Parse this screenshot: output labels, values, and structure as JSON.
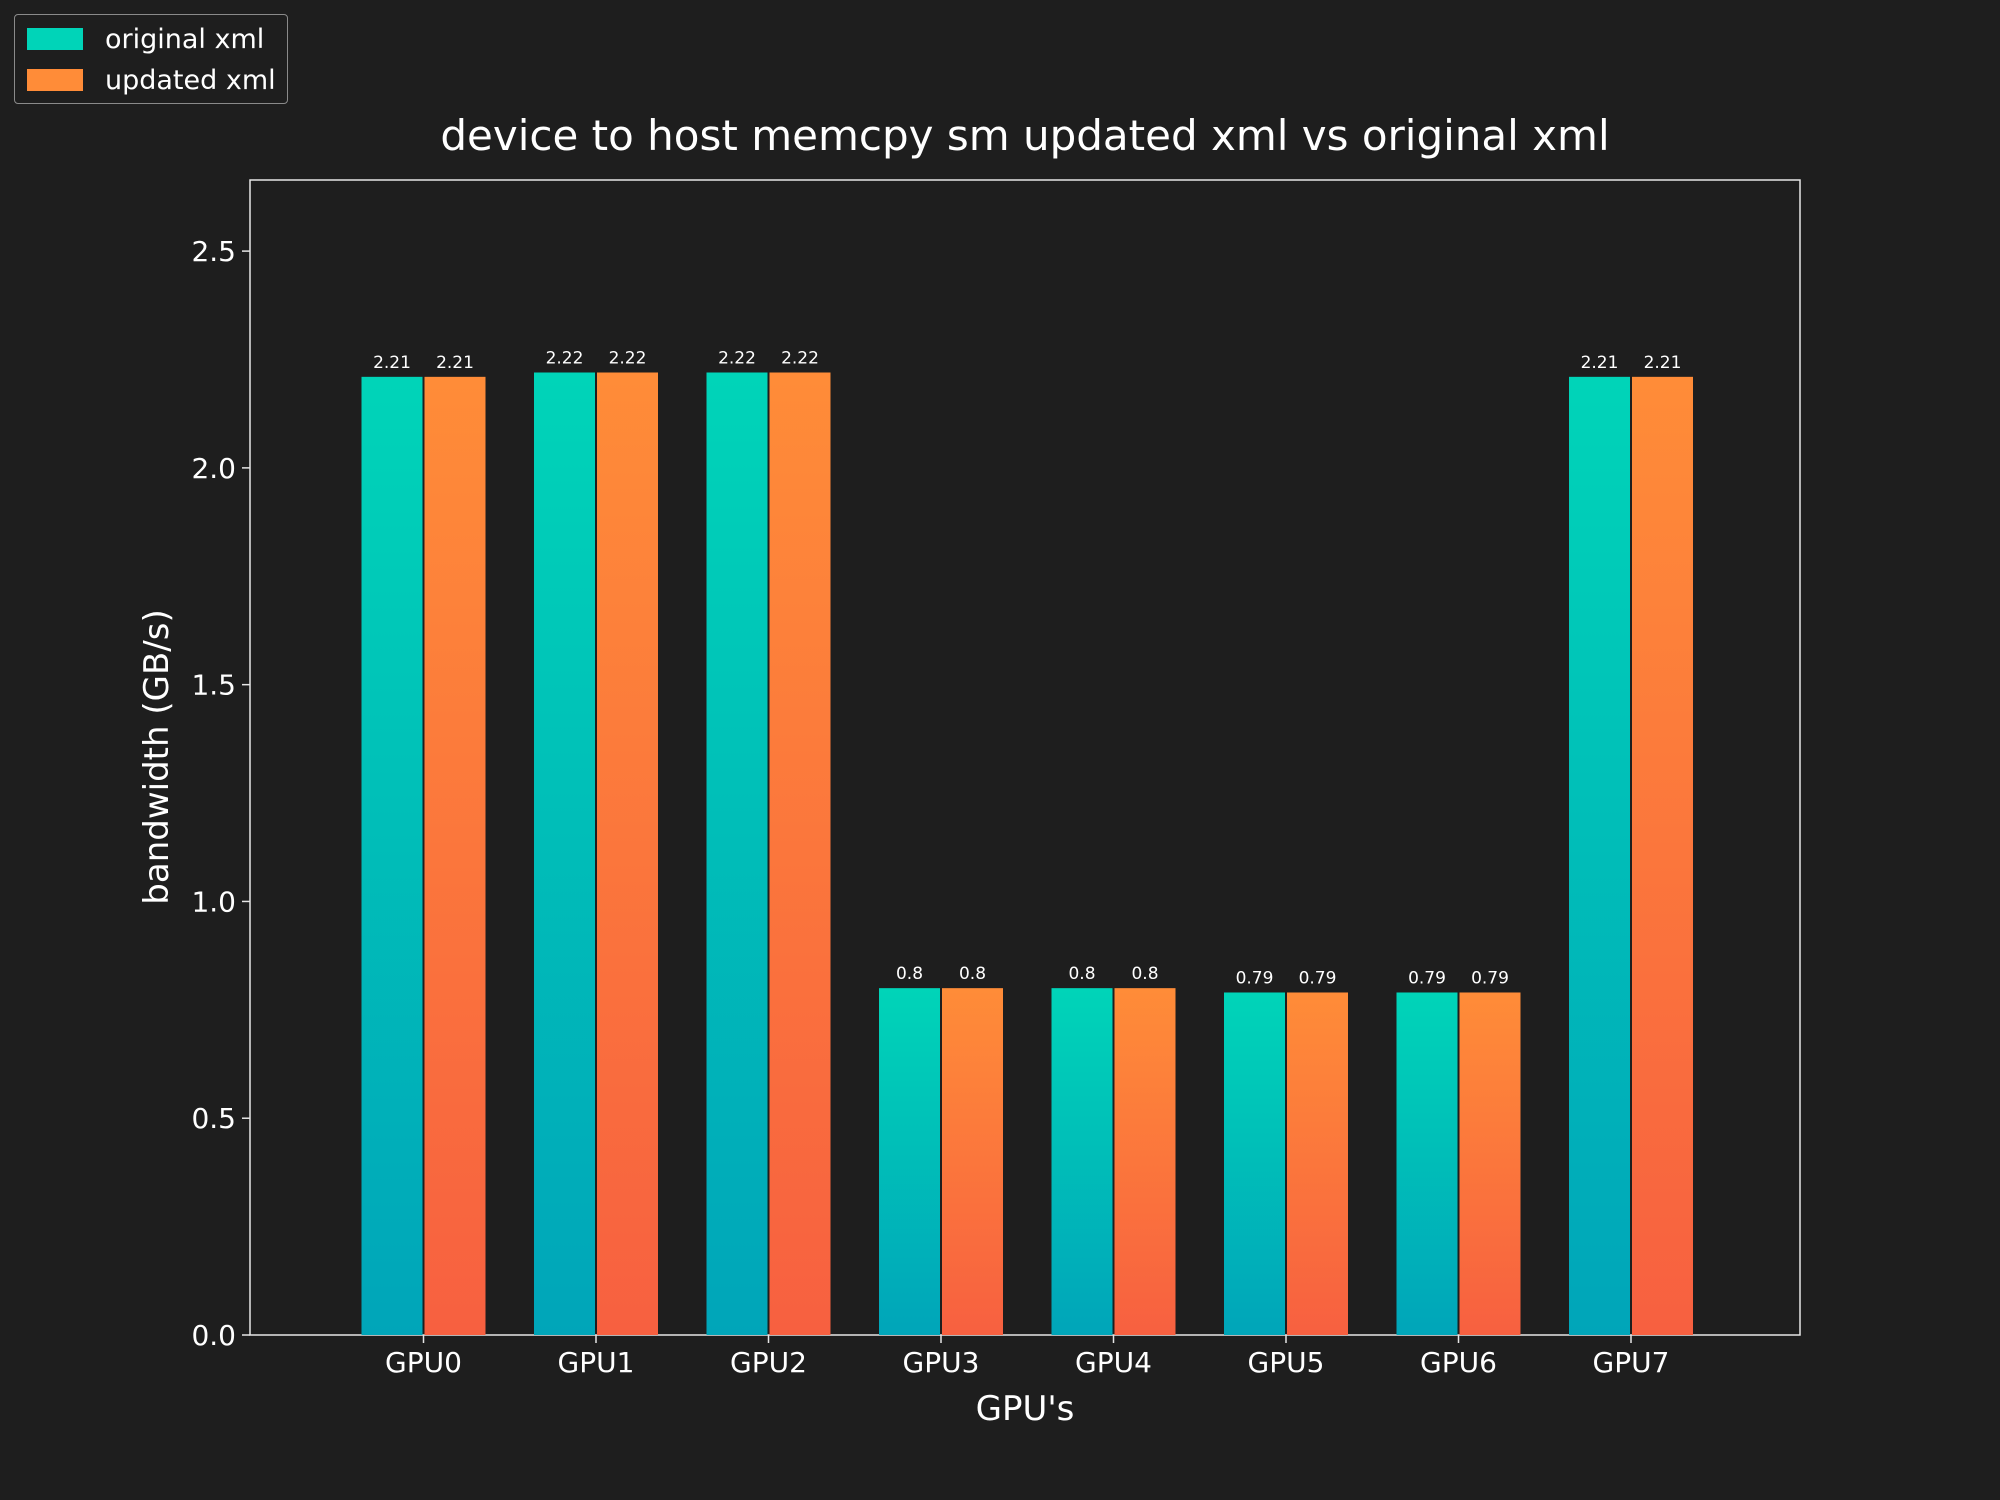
{
  "chart_data": {
    "type": "bar",
    "title": "device to host memcpy sm updated xml vs original xml",
    "xlabel": "GPU's",
    "ylabel": "bandwidth (GB/s)",
    "categories": [
      "GPU0",
      "GPU1",
      "GPU2",
      "GPU3",
      "GPU4",
      "GPU5",
      "GPU6",
      "GPU7"
    ],
    "series": [
      {
        "name": "original xml",
        "values": [
          2.21,
          2.22,
          2.22,
          0.8,
          0.8,
          0.79,
          0.79,
          2.21
        ],
        "color": "#00d4b8"
      },
      {
        "name": "updated xml",
        "values": [
          2.21,
          2.22,
          2.22,
          0.8,
          0.8,
          0.79,
          0.79,
          2.21
        ],
        "color": "#ff8c38"
      }
    ],
    "ylim": [
      0,
      2.664
    ],
    "yticks": [
      0.0,
      0.5,
      1.0,
      1.5,
      2.0,
      2.5
    ],
    "ytick_labels": [
      "0.0",
      "0.5",
      "1.0",
      "1.5",
      "2.0",
      "2.5"
    ],
    "data_labels": [
      [
        "2.21",
        "2.22",
        "2.22",
        "0.8",
        "0.8",
        "0.79",
        "0.79",
        "2.21"
      ],
      [
        "2.21",
        "2.22",
        "2.22",
        "0.8",
        "0.8",
        "0.79",
        "0.79",
        "2.21"
      ]
    ],
    "legend_position": "top-left",
    "grid": false
  }
}
